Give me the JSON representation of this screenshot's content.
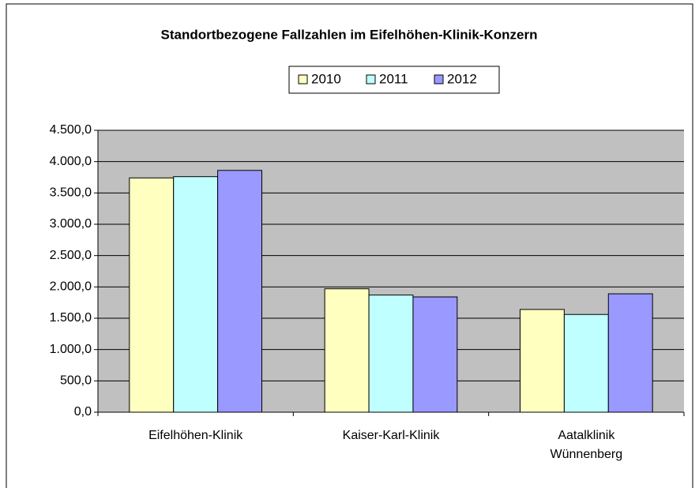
{
  "chart_data": {
    "type": "bar",
    "title": "Standortbezogene Fallzahlen  im Eifelhöhen-Klinik-Konzern",
    "categories": [
      "Eifelhöhen-Klinik",
      "Kaiser-Karl-Klinik",
      "Aatalklinik Wünnenberg"
    ],
    "series": [
      {
        "name": "2010",
        "color": "#ffffc0",
        "values": [
          3740,
          1970,
          1640
        ]
      },
      {
        "name": "2011",
        "color": "#c0ffff",
        "values": [
          3760,
          1870,
          1560
        ]
      },
      {
        "name": "2012",
        "color": "#9999ff",
        "values": [
          3860,
          1840,
          1890
        ]
      }
    ],
    "ylim": [
      0,
      4500
    ],
    "yticks": [
      {
        "value": 0,
        "label": "0,0"
      },
      {
        "value": 500,
        "label": "500,0"
      },
      {
        "value": 1000,
        "label": "1.000,0"
      },
      {
        "value": 1500,
        "label": "1.500,0"
      },
      {
        "value": 2000,
        "label": "2.000,0"
      },
      {
        "value": 2500,
        "label": "2.500,0"
      },
      {
        "value": 3000,
        "label": "3.000,0"
      },
      {
        "value": 3500,
        "label": "3.500,0"
      },
      {
        "value": 4000,
        "label": "4.000,0"
      },
      {
        "value": 4500,
        "label": "4.500,0"
      }
    ],
    "grid": true,
    "legend": "top"
  }
}
